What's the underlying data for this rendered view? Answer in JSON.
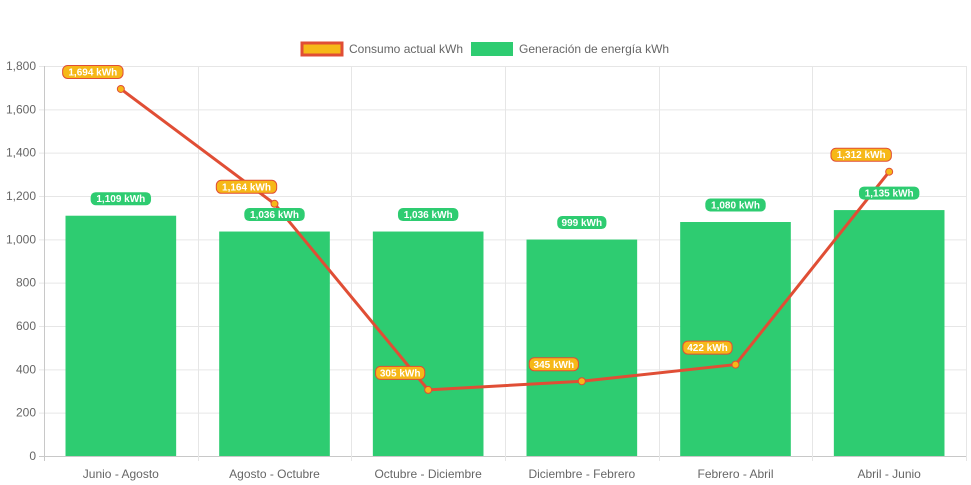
{
  "chart_data": {
    "type": "bar",
    "categories": [
      "Junio - Agosto",
      "Agosto - Octubre",
      "Octubre - Diciembre",
      "Diciembre - Febrero",
      "Febrero - Abril",
      "Abril - Junio"
    ],
    "series": [
      {
        "name": "Consumo actual kWh",
        "type": "line",
        "values": [
          1694,
          1164,
          305,
          345,
          422,
          1312
        ],
        "labels": [
          "1,694 kWh",
          "1,164 kWh",
          "305 kWh",
          "345 kWh",
          "422 kWh",
          "1,312 kWh"
        ],
        "color": "#e04e35",
        "fill": "#f6b818"
      },
      {
        "name": "Generación de energía kWh",
        "type": "bar",
        "values": [
          1109,
          1036,
          1036,
          999,
          1080,
          1135
        ],
        "labels": [
          "1,109 kWh",
          "1,036 kWh",
          "1,036 kWh",
          "999 kWh",
          "1,080 kWh",
          "1,135 kWh"
        ],
        "color": "#2ecc71"
      }
    ],
    "ylim": [
      0,
      1800
    ],
    "yticks": [
      0,
      200,
      400,
      600,
      800,
      1000,
      1200,
      1400,
      1600,
      1800
    ],
    "ytick_labels": [
      "0",
      "200",
      "400",
      "600",
      "800",
      "1,000",
      "1,200",
      "1,400",
      "1,600",
      "1,800"
    ],
    "title": "",
    "xlabel": "",
    "ylabel": "",
    "grid": true,
    "legend": "top-center"
  }
}
